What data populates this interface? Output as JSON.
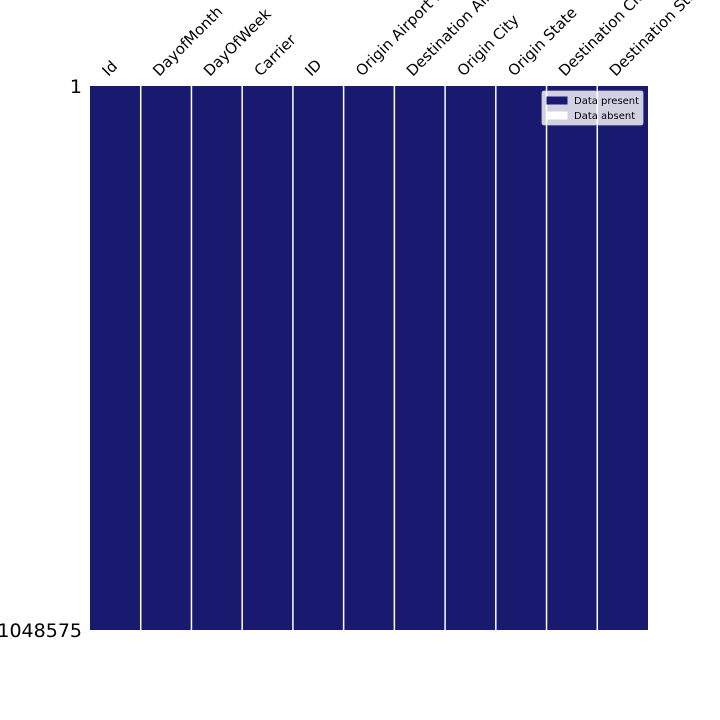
{
  "chart_data": {
    "type": "heatmap",
    "title": "",
    "columns": [
      "Id",
      "DayofMonth",
      "DayOfWeek",
      "Carrier",
      "ID",
      "Origin Airport ID",
      "Destination Airport ID",
      "Origin City",
      "Origin State",
      "Destination City",
      "Destination State"
    ],
    "row_range": [
      1,
      1048575
    ],
    "y_tick_labels": [
      "1",
      "1048575"
    ],
    "present_fraction": [
      1,
      1,
      1,
      1,
      1,
      1,
      1,
      1,
      1,
      1,
      1
    ],
    "legend": {
      "placement": "top-right",
      "entries": [
        {
          "label": "Data present",
          "color": "#191970"
        },
        {
          "label": "Data absent",
          "color": "#ffffff"
        }
      ]
    },
    "colors": {
      "present": "#191970",
      "absent": "#ffffff",
      "separator": "#ffffff"
    }
  }
}
